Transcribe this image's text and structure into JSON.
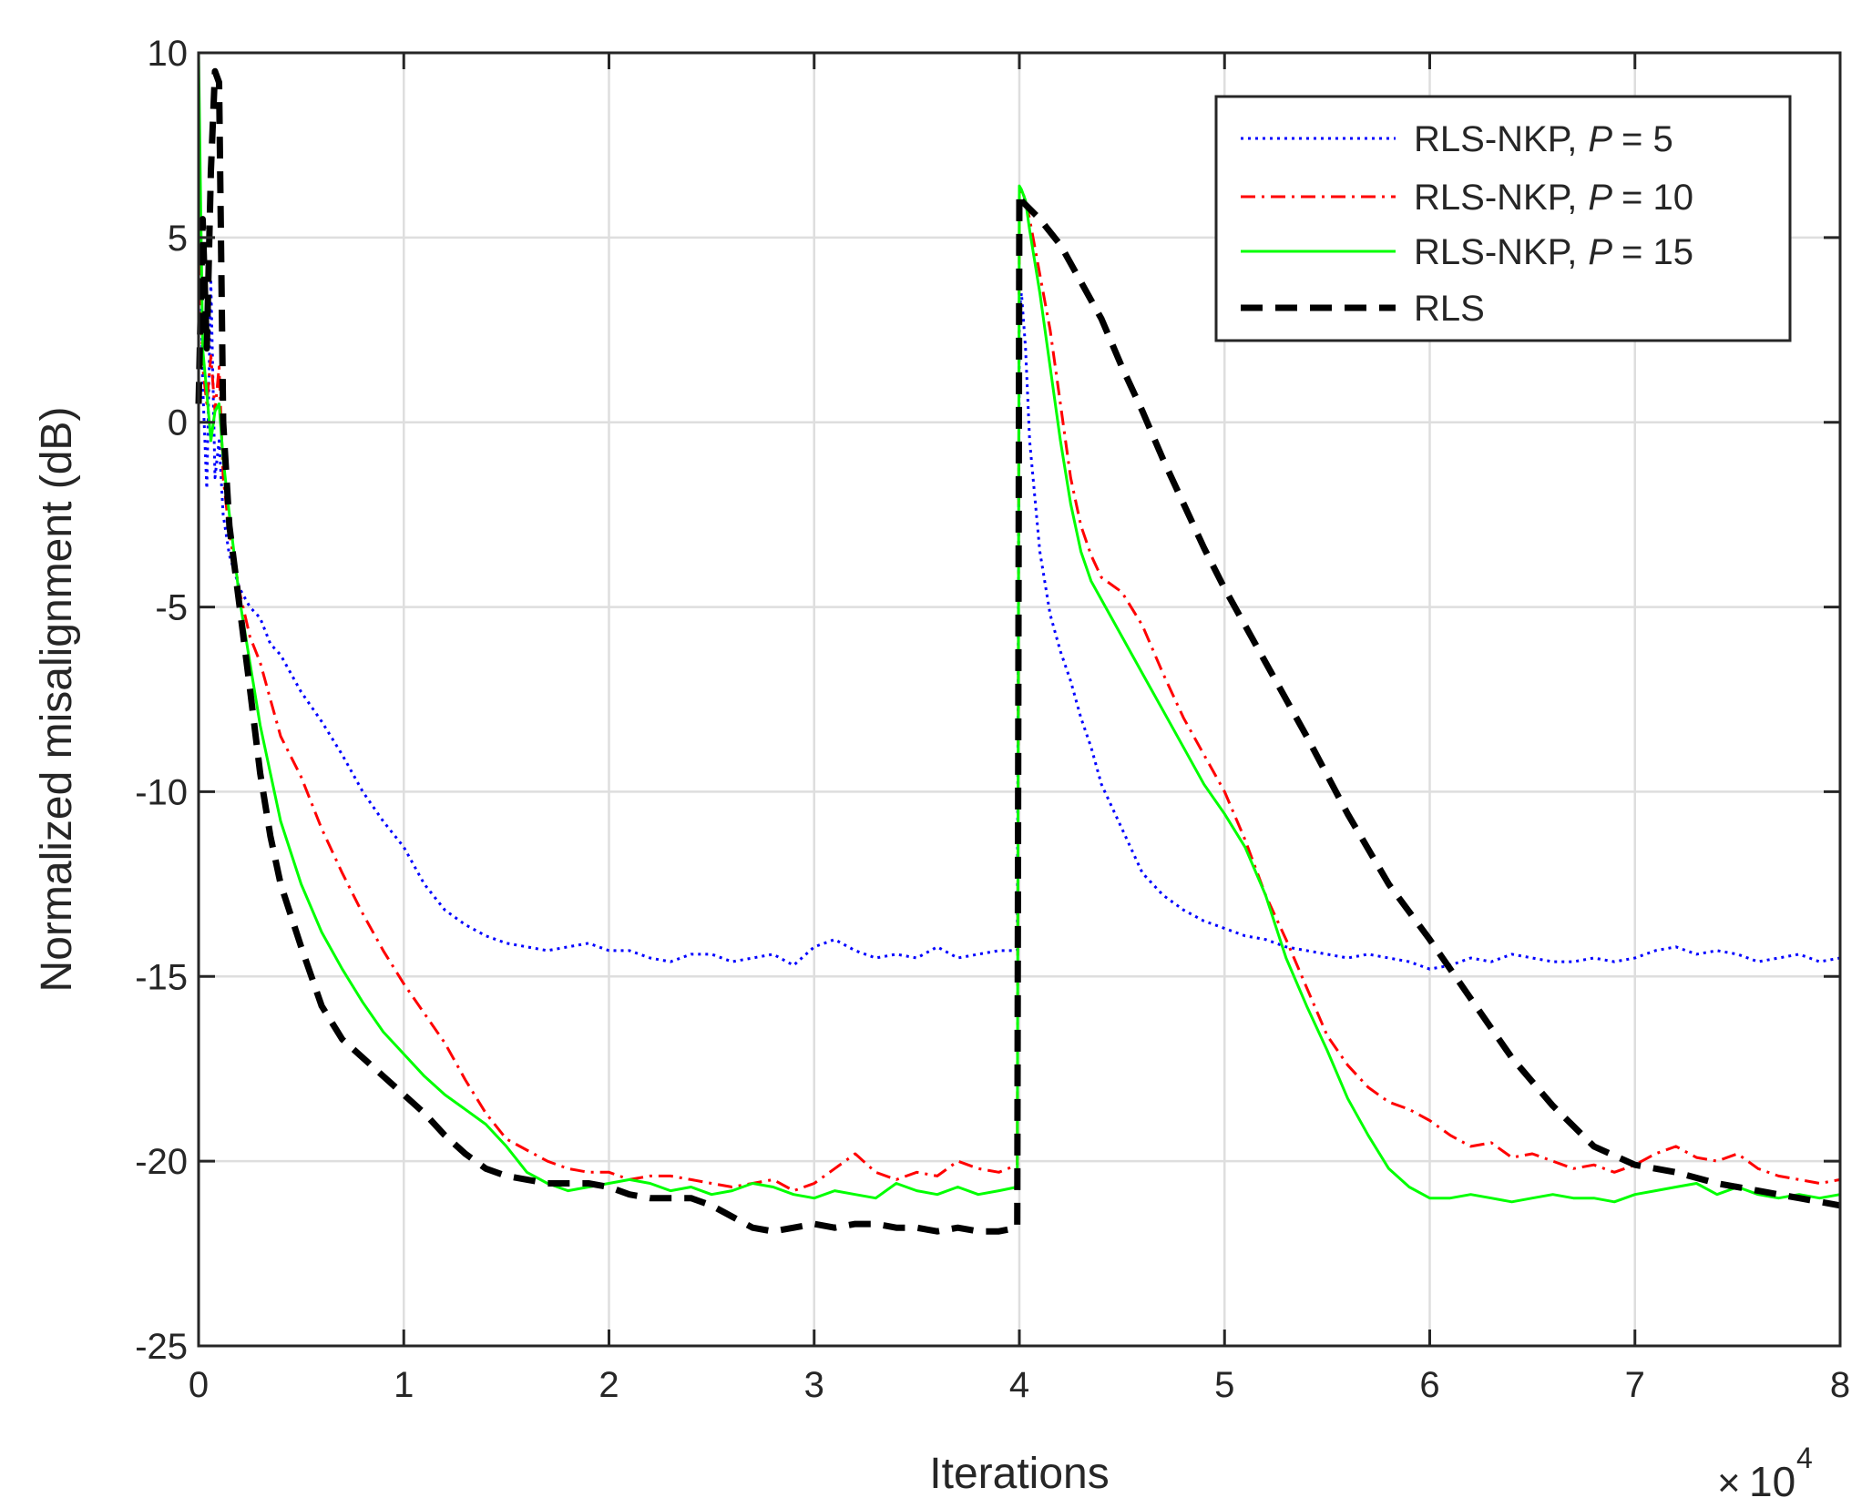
{
  "chart_data": {
    "type": "line",
    "title": "",
    "xlabel": "Iterations",
    "ylabel": "Normalized misalignment (dB)",
    "x_multiplier": {
      "times": "×",
      "base": "10",
      "exponent": "4"
    },
    "xlim": [
      0,
      8
    ],
    "ylim": [
      -25,
      10
    ],
    "x_ticks": [
      0,
      1,
      2,
      3,
      4,
      5,
      6,
      7,
      8
    ],
    "x_tick_labels": [
      "0",
      "1",
      "2",
      "3",
      "4",
      "5",
      "6",
      "7",
      "8"
    ],
    "y_ticks": [
      10,
      5,
      0,
      -5,
      -10,
      -15,
      -20,
      -25
    ],
    "y_tick_labels": [
      "10",
      "5",
      "0",
      "-5",
      "-10",
      "-15",
      "-20",
      "-25"
    ],
    "grid": true,
    "legend_position": "top-right",
    "x_unit_note": "x values in units of 10^4 iterations",
    "series": [
      {
        "name": "RLS-NKP, P = 5",
        "legend_prefix": "RLS-NKP,",
        "legend_var": "P",
        "legend_suffix": "= 5",
        "color": "#0000ff",
        "dash": "dotted",
        "x": [
          0,
          0.02,
          0.04,
          0.06,
          0.08,
          0.1,
          0.12,
          0.15,
          0.2,
          0.25,
          0.3,
          0.35,
          0.4,
          0.5,
          0.6,
          0.7,
          0.8,
          0.9,
          1.0,
          1.1,
          1.2,
          1.3,
          1.4,
          1.5,
          1.6,
          1.7,
          1.8,
          1.9,
          2.0,
          2.1,
          2.2,
          2.3,
          2.4,
          2.5,
          2.6,
          2.7,
          2.8,
          2.9,
          3.0,
          3.1,
          3.2,
          3.3,
          3.4,
          3.5,
          3.6,
          3.7,
          3.8,
          3.9,
          3.99,
          4.0,
          4.01,
          4.03,
          4.05,
          4.1,
          4.15,
          4.2,
          4.25,
          4.3,
          4.35,
          4.4,
          4.5,
          4.6,
          4.7,
          4.8,
          4.9,
          5.0,
          5.1,
          5.2,
          5.3,
          5.4,
          5.5,
          5.6,
          5.7,
          5.8,
          5.9,
          6.0,
          6.1,
          6.2,
          6.3,
          6.4,
          6.5,
          6.6,
          6.7,
          6.8,
          6.9,
          7.0,
          7.1,
          7.2,
          7.3,
          7.4,
          7.5,
          7.6,
          7.7,
          7.8,
          7.9,
          8.0
        ],
        "y": [
          8,
          1,
          -1.8,
          3.8,
          -1.5,
          -0.5,
          -2.5,
          -3.6,
          -4.5,
          -5.0,
          -5.3,
          -6.0,
          -6.3,
          -7.3,
          -8.1,
          -9.0,
          -10.0,
          -10.8,
          -11.5,
          -12.5,
          -13.2,
          -13.6,
          -13.9,
          -14.1,
          -14.2,
          -14.3,
          -14.2,
          -14.1,
          -14.3,
          -14.3,
          -14.5,
          -14.6,
          -14.4,
          -14.4,
          -14.6,
          -14.5,
          -14.4,
          -14.7,
          -14.2,
          -14.0,
          -14.3,
          -14.5,
          -14.4,
          -14.5,
          -14.2,
          -14.5,
          -14.4,
          -14.3,
          -14.3,
          3.0,
          3.5,
          2.0,
          -0.5,
          -3.5,
          -5.2,
          -6.2,
          -7.0,
          -8.0,
          -8.8,
          -9.8,
          -11.0,
          -12.2,
          -12.8,
          -13.2,
          -13.5,
          -13.7,
          -13.9,
          -14.0,
          -14.2,
          -14.3,
          -14.4,
          -14.5,
          -14.4,
          -14.5,
          -14.6,
          -14.8,
          -14.7,
          -14.5,
          -14.6,
          -14.4,
          -14.5,
          -14.6,
          -14.6,
          -14.5,
          -14.6,
          -14.5,
          -14.3,
          -14.2,
          -14.4,
          -14.3,
          -14.4,
          -14.6,
          -14.5,
          -14.4,
          -14.6,
          -14.5
        ]
      },
      {
        "name": "RLS-NKP, P = 10",
        "legend_prefix": "RLS-NKP,",
        "legend_var": "P",
        "legend_suffix": "= 10",
        "color": "#ff0000",
        "dash": "dashdot",
        "x": [
          0,
          0.02,
          0.04,
          0.06,
          0.08,
          0.1,
          0.12,
          0.15,
          0.2,
          0.25,
          0.3,
          0.35,
          0.4,
          0.5,
          0.6,
          0.7,
          0.8,
          0.9,
          1.0,
          1.1,
          1.2,
          1.3,
          1.4,
          1.5,
          1.6,
          1.7,
          1.8,
          1.9,
          2.0,
          2.1,
          2.2,
          2.3,
          2.4,
          2.5,
          2.6,
          2.7,
          2.8,
          2.9,
          3.0,
          3.1,
          3.2,
          3.3,
          3.4,
          3.5,
          3.6,
          3.7,
          3.8,
          3.9,
          3.99,
          4.0,
          4.01,
          4.03,
          4.05,
          4.1,
          4.15,
          4.2,
          4.25,
          4.3,
          4.35,
          4.4,
          4.5,
          4.6,
          4.7,
          4.8,
          4.9,
          5.0,
          5.1,
          5.2,
          5.3,
          5.4,
          5.5,
          5.6,
          5.7,
          5.8,
          5.9,
          6.0,
          6.1,
          6.2,
          6.3,
          6.4,
          6.5,
          6.6,
          6.7,
          6.8,
          6.9,
          7.0,
          7.1,
          7.2,
          7.3,
          7.4,
          7.5,
          7.6,
          7.7,
          7.8,
          7.9,
          8.0
        ],
        "y": [
          6,
          1.5,
          0.5,
          1.8,
          0.3,
          1.5,
          -1.5,
          -3.0,
          -4.6,
          -5.8,
          -6.5,
          -7.5,
          -8.5,
          -9.6,
          -11.0,
          -12.2,
          -13.3,
          -14.3,
          -15.2,
          -16.0,
          -16.8,
          -17.8,
          -18.7,
          -19.4,
          -19.7,
          -20.0,
          -20.2,
          -20.3,
          -20.3,
          -20.5,
          -20.4,
          -20.4,
          -20.5,
          -20.6,
          -20.7,
          -20.6,
          -20.5,
          -20.8,
          -20.6,
          -20.2,
          -19.8,
          -20.3,
          -20.5,
          -20.3,
          -20.4,
          -20.0,
          -20.2,
          -20.3,
          -20.1,
          6.2,
          6.3,
          6.0,
          5.5,
          4.0,
          2.5,
          0.5,
          -1.5,
          -2.8,
          -3.6,
          -4.2,
          -4.6,
          -5.5,
          -6.8,
          -8.0,
          -9.0,
          -10.0,
          -11.3,
          -12.8,
          -14.0,
          -15.3,
          -16.6,
          -17.4,
          -18.0,
          -18.4,
          -18.6,
          -18.9,
          -19.3,
          -19.6,
          -19.5,
          -19.9,
          -19.8,
          -20.0,
          -20.2,
          -20.1,
          -20.3,
          -20.1,
          -19.8,
          -19.6,
          -19.9,
          -20.0,
          -19.8,
          -20.2,
          -20.4,
          -20.5,
          -20.6,
          -20.5
        ]
      },
      {
        "name": "RLS-NKP, P = 15",
        "legend_prefix": "RLS-NKP,",
        "legend_var": "P",
        "legend_suffix": "= 15",
        "color": "#00ff00",
        "dash": "solid",
        "x": [
          0,
          0.02,
          0.04,
          0.06,
          0.08,
          0.1,
          0.12,
          0.15,
          0.2,
          0.25,
          0.3,
          0.35,
          0.4,
          0.5,
          0.6,
          0.7,
          0.8,
          0.9,
          1.0,
          1.1,
          1.2,
          1.3,
          1.4,
          1.5,
          1.6,
          1.7,
          1.8,
          1.9,
          2.0,
          2.1,
          2.2,
          2.3,
          2.4,
          2.5,
          2.6,
          2.7,
          2.8,
          2.9,
          3.0,
          3.1,
          3.2,
          3.3,
          3.4,
          3.5,
          3.6,
          3.7,
          3.8,
          3.9,
          3.99,
          4.0,
          4.01,
          4.03,
          4.05,
          4.1,
          4.15,
          4.2,
          4.25,
          4.3,
          4.35,
          4.4,
          4.5,
          4.6,
          4.7,
          4.8,
          4.9,
          5.0,
          5.1,
          5.2,
          5.3,
          5.4,
          5.5,
          5.6,
          5.7,
          5.8,
          5.9,
          6.0,
          6.1,
          6.2,
          6.3,
          6.4,
          6.5,
          6.6,
          6.7,
          6.8,
          6.9,
          7.0,
          7.1,
          7.2,
          7.3,
          7.4,
          7.5,
          7.6,
          7.7,
          7.8,
          7.9,
          8.0
        ],
        "y": [
          10,
          2,
          0.8,
          -0.5,
          0.3,
          0.5,
          -1.0,
          -2.5,
          -4.8,
          -6.5,
          -8.2,
          -9.5,
          -10.8,
          -12.5,
          -13.8,
          -14.8,
          -15.7,
          -16.5,
          -17.1,
          -17.7,
          -18.2,
          -18.6,
          -19.0,
          -19.6,
          -20.3,
          -20.6,
          -20.8,
          -20.7,
          -20.6,
          -20.5,
          -20.6,
          -20.8,
          -20.7,
          -20.9,
          -20.8,
          -20.6,
          -20.7,
          -20.9,
          -21.0,
          -20.8,
          -20.9,
          -21.0,
          -20.6,
          -20.8,
          -20.9,
          -20.7,
          -20.9,
          -20.8,
          -20.7,
          6.4,
          6.3,
          6.0,
          5.2,
          3.5,
          1.5,
          -0.5,
          -2.2,
          -3.5,
          -4.3,
          -4.8,
          -5.8,
          -6.8,
          -7.8,
          -8.8,
          -9.8,
          -10.6,
          -11.5,
          -12.8,
          -14.5,
          -15.8,
          -17.0,
          -18.3,
          -19.3,
          -20.2,
          -20.7,
          -21.0,
          -21.0,
          -20.9,
          -21.0,
          -21.1,
          -21.0,
          -20.9,
          -21.0,
          -21.0,
          -21.1,
          -20.9,
          -20.8,
          -20.7,
          -20.6,
          -20.9,
          -20.7,
          -20.9,
          -21.0,
          -20.9,
          -21.0,
          -20.9
        ]
      },
      {
        "name": "RLS",
        "legend_prefix": "RLS",
        "legend_var": "",
        "legend_suffix": "",
        "color": "#000000",
        "dash": "dashed",
        "x": [
          0,
          0.02,
          0.04,
          0.06,
          0.08,
          0.1,
          0.12,
          0.15,
          0.2,
          0.25,
          0.3,
          0.35,
          0.4,
          0.5,
          0.6,
          0.7,
          0.8,
          0.9,
          1.0,
          1.1,
          1.2,
          1.3,
          1.4,
          1.5,
          1.6,
          1.7,
          1.8,
          1.9,
          2.0,
          2.1,
          2.2,
          2.3,
          2.4,
          2.5,
          2.6,
          2.7,
          2.8,
          2.9,
          3.0,
          3.1,
          3.2,
          3.3,
          3.4,
          3.5,
          3.6,
          3.7,
          3.8,
          3.9,
          3.99,
          4.0,
          4.01,
          4.1,
          4.2,
          4.3,
          4.4,
          4.5,
          4.6,
          4.7,
          4.8,
          4.9,
          5.0,
          5.2,
          5.4,
          5.6,
          5.8,
          6.0,
          6.2,
          6.4,
          6.6,
          6.8,
          7.0,
          7.2,
          7.4,
          7.6,
          7.8,
          8.0
        ],
        "y": [
          0.5,
          5.5,
          2.0,
          6.8,
          9.5,
          9.2,
          0.0,
          -2.8,
          -5.0,
          -7.2,
          -9.5,
          -11.2,
          -12.5,
          -14.2,
          -15.8,
          -16.7,
          -17.2,
          -17.7,
          -18.2,
          -18.7,
          -19.3,
          -19.8,
          -20.2,
          -20.4,
          -20.5,
          -20.6,
          -20.6,
          -20.6,
          -20.7,
          -20.9,
          -21.0,
          -21.0,
          -21.0,
          -21.2,
          -21.5,
          -21.8,
          -21.9,
          -21.8,
          -21.7,
          -21.8,
          -21.7,
          -21.7,
          -21.8,
          -21.8,
          -21.9,
          -21.8,
          -21.9,
          -21.9,
          -21.8,
          6.2,
          6.0,
          5.5,
          4.8,
          3.8,
          2.8,
          1.5,
          0.3,
          -1.0,
          -2.2,
          -3.4,
          -4.5,
          -6.5,
          -8.5,
          -10.6,
          -12.5,
          -14.0,
          -15.6,
          -17.2,
          -18.5,
          -19.6,
          -20.1,
          -20.3,
          -20.6,
          -20.8,
          -21.0,
          -21.2
        ]
      }
    ]
  }
}
